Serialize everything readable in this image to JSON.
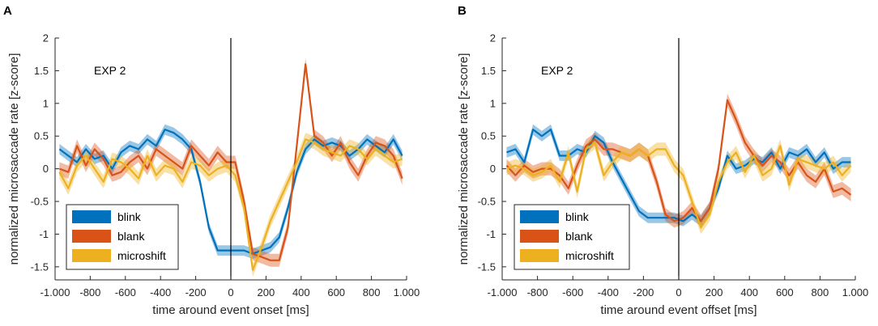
{
  "colors": {
    "blink": "#0072BD",
    "blank": "#D95319",
    "microshift": "#EDB120",
    "axis": "#262626"
  },
  "chart_data": [
    {
      "type": "line",
      "panel_label": "A",
      "annotation": "EXP 2",
      "xlabel": "time around event onset [ms]",
      "ylabel": "normalized microsaccade rate [z-score]",
      "xlim": [
        -1000,
        1000
      ],
      "ylim": [
        -1.7,
        2
      ],
      "xticks": [
        -1000,
        -800,
        -600,
        -400,
        -200,
        0,
        200,
        400,
        600,
        800,
        1000
      ],
      "xtick_labels": [
        "-1.000",
        "-800",
        "-600",
        "-400",
        "-200",
        "0",
        "200",
        "400",
        "600",
        "800",
        "1.000"
      ],
      "yticks": [
        -1.5,
        -1,
        -0.5,
        0,
        0.5,
        1,
        1.5,
        2
      ],
      "ytick_labels": [
        "-1.5",
        "-1",
        "-0.5",
        "0",
        "0.5",
        "1",
        "1.5",
        "2"
      ],
      "vline_x": 0,
      "legend": [
        "blink",
        "blank",
        "microshift"
      ],
      "x": [
        -975,
        -925,
        -875,
        -825,
        -775,
        -725,
        -675,
        -625,
        -575,
        -525,
        -475,
        -425,
        -375,
        -325,
        -275,
        -225,
        -175,
        -125,
        -75,
        -25,
        25,
        75,
        125,
        175,
        225,
        275,
        325,
        375,
        425,
        475,
        525,
        575,
        625,
        675,
        725,
        775,
        825,
        875,
        925,
        975
      ],
      "series": [
        {
          "name": "blink",
          "ci": 0.08,
          "values": [
            0.3,
            0.2,
            0.1,
            0.3,
            0.15,
            0.2,
            0.0,
            0.25,
            0.35,
            0.3,
            0.45,
            0.35,
            0.6,
            0.55,
            0.45,
            0.3,
            -0.2,
            -0.9,
            -1.25,
            -1.25,
            -1.25,
            -1.25,
            -1.3,
            -1.25,
            -1.2,
            -1.05,
            -0.6,
            -0.05,
            0.3,
            0.45,
            0.35,
            0.4,
            0.35,
            0.2,
            0.3,
            0.45,
            0.35,
            0.25,
            0.45,
            0.2
          ]
        },
        {
          "name": "blank",
          "ci": 0.1,
          "values": [
            0.0,
            -0.05,
            0.35,
            0.05,
            0.3,
            0.15,
            -0.1,
            -0.05,
            0.1,
            0.2,
            0.0,
            0.3,
            0.2,
            0.1,
            0.0,
            0.35,
            0.2,
            0.05,
            0.25,
            0.1,
            0.1,
            -0.5,
            -1.3,
            -1.35,
            -1.4,
            -1.4,
            -0.9,
            0.35,
            1.6,
            0.5,
            0.4,
            0.2,
            0.4,
            0.1,
            -0.1,
            0.2,
            0.4,
            0.35,
            0.2,
            -0.15
          ]
        },
        {
          "name": "microshift",
          "ci": 0.1,
          "values": [
            -0.05,
            -0.3,
            0.05,
            0.2,
            0.0,
            -0.2,
            0.15,
            0.1,
            0.0,
            -0.15,
            0.2,
            -0.1,
            0.05,
            0.0,
            -0.2,
            0.1,
            0.05,
            -0.1,
            0.0,
            0.05,
            -0.1,
            -0.6,
            -1.55,
            -1.2,
            -0.8,
            -0.5,
            -0.2,
            0.1,
            0.45,
            0.4,
            0.3,
            0.25,
            0.2,
            0.35,
            0.3,
            0.15,
            0.3,
            0.2,
            0.1,
            0.15
          ]
        }
      ]
    },
    {
      "type": "line",
      "panel_label": "B",
      "annotation": "EXP 2",
      "xlabel": "time around event offset [ms]",
      "ylabel": "normalized microsaccade rate [z-score]",
      "xlim": [
        -1000,
        1000
      ],
      "ylim": [
        -1.7,
        2
      ],
      "xticks": [
        -1000,
        -800,
        -600,
        -400,
        -200,
        0,
        200,
        400,
        600,
        800,
        1000
      ],
      "xtick_labels": [
        "-1.000",
        "-800",
        "-600",
        "-400",
        "-200",
        "0",
        "200",
        "400",
        "600",
        "800",
        "1.000"
      ],
      "yticks": [
        -1.5,
        -1,
        -0.5,
        0,
        0.5,
        1,
        1.5,
        2
      ],
      "ytick_labels": [
        "-1.5",
        "-1",
        "-0.5",
        "0",
        "0.5",
        "1",
        "1.5",
        "2"
      ],
      "vline_x": 0,
      "legend": [
        "blink",
        "blank",
        "microshift"
      ],
      "x": [
        -975,
        -925,
        -875,
        -825,
        -775,
        -725,
        -675,
        -625,
        -575,
        -525,
        -475,
        -425,
        -375,
        -325,
        -275,
        -225,
        -175,
        -125,
        -75,
        -25,
        25,
        75,
        125,
        175,
        225,
        275,
        325,
        375,
        425,
        475,
        525,
        575,
        625,
        675,
        725,
        775,
        825,
        875,
        925,
        975
      ],
      "series": [
        {
          "name": "blink",
          "ci": 0.08,
          "values": [
            0.25,
            0.3,
            0.1,
            0.6,
            0.5,
            0.6,
            0.2,
            0.2,
            0.3,
            0.25,
            0.5,
            0.4,
            0.1,
            -0.15,
            -0.4,
            -0.65,
            -0.75,
            -0.75,
            -0.75,
            -0.75,
            -0.8,
            -0.7,
            -0.8,
            -0.6,
            -0.3,
            0.2,
            0.0,
            0.05,
            0.15,
            0.1,
            0.25,
            0.0,
            0.25,
            0.2,
            0.3,
            0.1,
            0.25,
            0.0,
            0.1,
            0.1
          ]
        },
        {
          "name": "blank",
          "ci": 0.1,
          "values": [
            0.05,
            -0.1,
            0.05,
            -0.05,
            0.0,
            0.0,
            -0.1,
            -0.3,
            0.05,
            0.35,
            0.45,
            0.3,
            0.3,
            0.25,
            0.2,
            0.3,
            0.2,
            -0.2,
            -0.7,
            -0.8,
            -0.75,
            -0.6,
            -0.8,
            -0.6,
            0.0,
            1.05,
            0.75,
            0.4,
            0.2,
            0.05,
            0.2,
            0.1,
            -0.1,
            0.1,
            -0.1,
            -0.2,
            0.0,
            -0.35,
            -0.3,
            -0.4
          ]
        },
        {
          "name": "microshift",
          "ci": 0.1,
          "values": [
            0.0,
            0.05,
            0.0,
            -0.1,
            -0.05,
            0.05,
            -0.2,
            0.25,
            -0.35,
            0.3,
            0.4,
            -0.1,
            0.1,
            0.25,
            0.2,
            0.3,
            0.2,
            0.3,
            0.3,
            0.05,
            -0.1,
            -0.5,
            -0.9,
            -0.7,
            -0.2,
            0.1,
            0.25,
            -0.05,
            0.2,
            -0.1,
            0.0,
            0.35,
            -0.25,
            0.15,
            0.1,
            0.05,
            0.0,
            0.1,
            -0.1,
            0.05
          ]
        }
      ]
    }
  ]
}
